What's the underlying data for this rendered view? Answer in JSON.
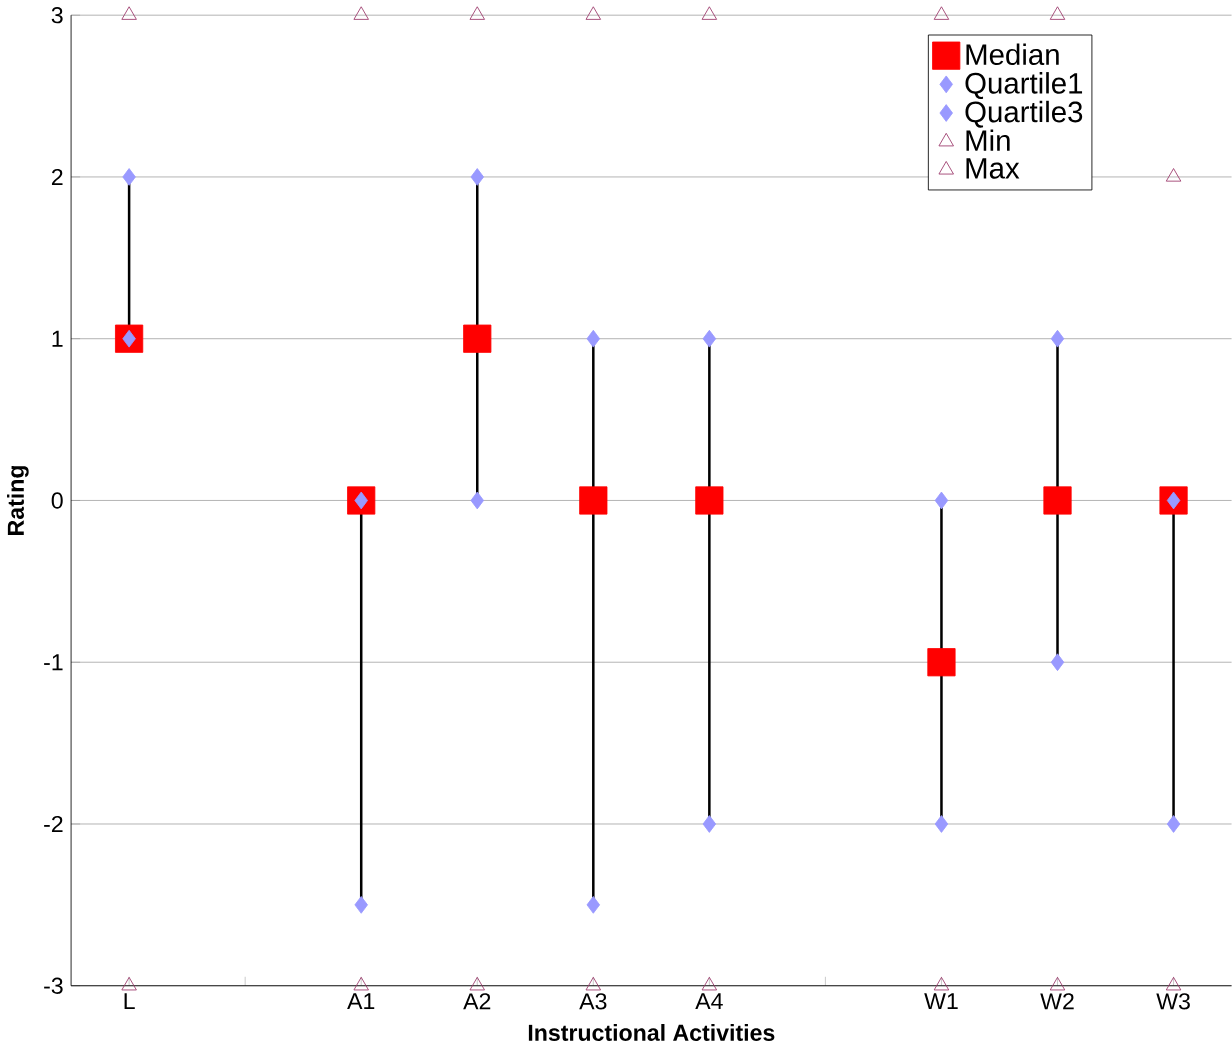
{
  "chart_data": {
    "type": "scatter",
    "xlabel": "Instructional Activities",
    "ylabel": "Rating",
    "categories": [
      "L",
      null,
      "A1",
      "A2",
      "A3",
      "A4",
      null,
      "W1",
      "W2",
      "W3"
    ],
    "series": [
      {
        "name": "Median",
        "color": "#ff0000",
        "marker": "square",
        "values": [
          1,
          null,
          0,
          1,
          0,
          0,
          null,
          -1,
          0,
          0
        ]
      },
      {
        "name": "Quartile1",
        "color": "#9999ff",
        "marker": "diamond",
        "values": [
          1,
          null,
          -2.5,
          0,
          -2.5,
          -2,
          null,
          -2,
          -1,
          -2
        ]
      },
      {
        "name": "Quartile3",
        "color": "#9999ff",
        "marker": "diamond",
        "values": [
          2,
          null,
          0,
          2,
          1,
          1,
          null,
          0,
          1,
          0
        ]
      },
      {
        "name": "Min",
        "color": "#993366",
        "marker": "triangle",
        "values": [
          -3,
          null,
          -3,
          -3,
          -3,
          -3,
          null,
          -3,
          -3,
          -3
        ]
      },
      {
        "name": "Max",
        "color": "#993366",
        "marker": "triangle",
        "values": [
          3,
          null,
          3,
          3,
          3,
          3,
          null,
          3,
          3,
          2
        ]
      }
    ],
    "ylim": [
      -3,
      3
    ],
    "yticks": [
      -3,
      -2,
      -1,
      0,
      1,
      2,
      3
    ],
    "grid": "y",
    "legend": "top right"
  }
}
